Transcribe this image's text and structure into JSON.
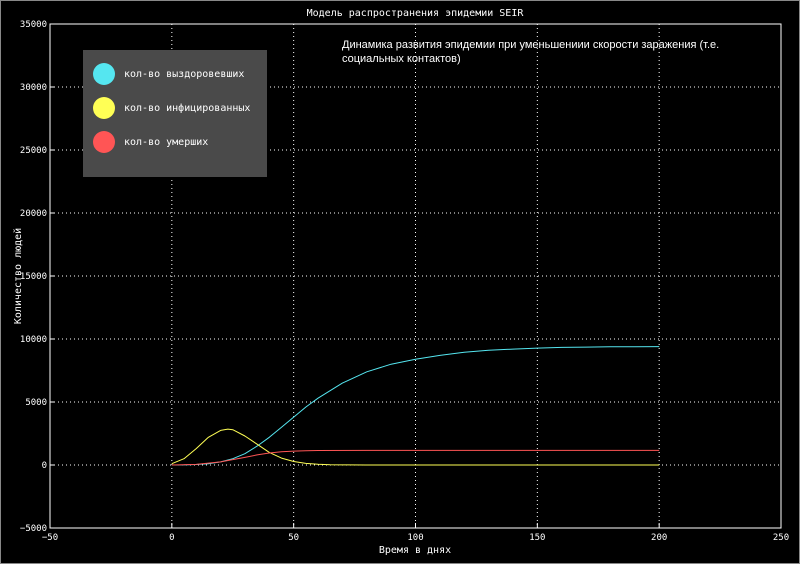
{
  "chart_data": {
    "type": "line",
    "title": "Модель распространения эпидемии SEIR",
    "xlabel": "Время в днях",
    "ylabel": "Количество людей",
    "xlim": [
      -50,
      250
    ],
    "ylim": [
      -5000,
      35000
    ],
    "xticks": [
      -50,
      0,
      50,
      100,
      150,
      200,
      250
    ],
    "yticks": [
      -5000,
      0,
      5000,
      10000,
      15000,
      20000,
      25000,
      30000,
      35000
    ],
    "grid": true,
    "legend_position": "top-left",
    "annotation": "Динамика развития эпидемии при уменьшениии скорости заражения (т.е. социальных контактов)",
    "series": [
      {
        "name": "кол-во выздоровевших",
        "color": "#55e6f0",
        "x": [
          0,
          5,
          10,
          15,
          20,
          25,
          30,
          35,
          40,
          45,
          50,
          55,
          60,
          70,
          80,
          90,
          100,
          110,
          120,
          130,
          140,
          150,
          160,
          170,
          180,
          190,
          200
        ],
        "y": [
          0,
          10,
          40,
          100,
          250,
          500,
          900,
          1500,
          2200,
          3000,
          3800,
          4600,
          5300,
          6500,
          7400,
          8000,
          8400,
          8700,
          8950,
          9100,
          9200,
          9280,
          9330,
          9360,
          9380,
          9390,
          9400
        ]
      },
      {
        "name": "кол-во инфицированных",
        "color": "#ffff55",
        "x": [
          0,
          5,
          10,
          15,
          20,
          23,
          25,
          30,
          35,
          40,
          45,
          50,
          55,
          60,
          65,
          70,
          72,
          80,
          100,
          150,
          200
        ],
        "y": [
          100,
          500,
          1300,
          2200,
          2750,
          2850,
          2800,
          2300,
          1650,
          1000,
          550,
          280,
          130,
          60,
          25,
          10,
          5,
          0,
          0,
          0,
          0
        ]
      },
      {
        "name": "кол-во умерших",
        "color": "#ff5555",
        "x": [
          0,
          10,
          20,
          30,
          35,
          40,
          45,
          50,
          55,
          60,
          80,
          100,
          150,
          200
        ],
        "y": [
          0,
          50,
          250,
          600,
          800,
          950,
          1050,
          1100,
          1130,
          1150,
          1160,
          1160,
          1160,
          1160
        ]
      }
    ]
  }
}
